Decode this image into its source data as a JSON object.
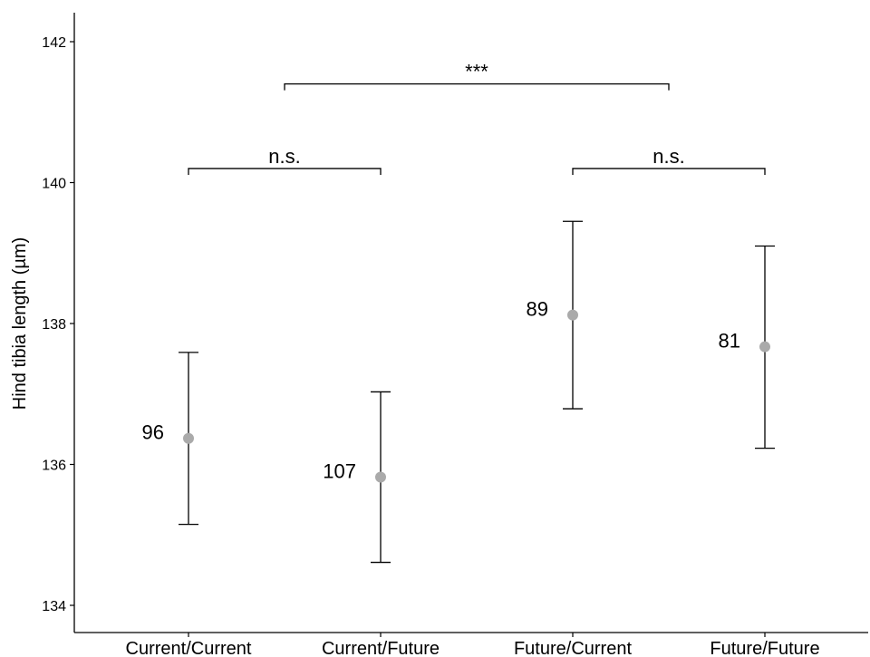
{
  "chart_data": {
    "type": "scatter",
    "xlabel": "",
    "ylabel": "Hind tibia length (µm)",
    "ylim": [
      133.6,
      142.4
    ],
    "yticks": [
      134,
      136,
      138,
      140,
      142
    ],
    "categories": [
      "Current/Current",
      "Current/Future",
      "Future/Current",
      "Future/Future"
    ],
    "means": [
      136.37,
      135.82,
      138.12,
      137.67
    ],
    "error_low": [
      135.15,
      134.61,
      136.79,
      136.23
    ],
    "error_high": [
      137.59,
      137.03,
      139.45,
      139.1
    ],
    "sample_sizes": [
      "96",
      "107",
      "89",
      "81"
    ],
    "point_color": "#aaaaaa",
    "comparisons": [
      {
        "from": 0,
        "to": 1,
        "y": 140.2,
        "label": "n.s."
      },
      {
        "from": 2,
        "to": 3,
        "y": 140.2,
        "label": "n.s."
      },
      {
        "from": 0.5,
        "to": 2.5,
        "y": 141.4,
        "label": "***"
      }
    ],
    "grid": false,
    "legend": "none"
  }
}
